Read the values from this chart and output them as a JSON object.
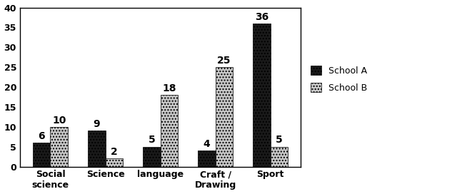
{
  "categories": [
    "Social\nscience",
    "Science",
    "language",
    "Craft /\nDrawing",
    "Sport"
  ],
  "school_a": [
    6,
    9,
    5,
    4,
    36
  ],
  "school_b": [
    10,
    2,
    18,
    25,
    5
  ],
  "color_a": "#1a1a1a",
  "color_b": "#c8c8c8",
  "hatch_a": "....",
  "hatch_b": "....",
  "ylim": [
    0,
    40
  ],
  "yticks": [
    0,
    5,
    10,
    15,
    20,
    25,
    30,
    35,
    40
  ],
  "legend_a": "School A",
  "legend_b": "School B",
  "bar_width": 0.32,
  "label_fontsize": 10,
  "tick_fontsize": 9,
  "legend_fontsize": 9,
  "background_color": "#ffffff"
}
